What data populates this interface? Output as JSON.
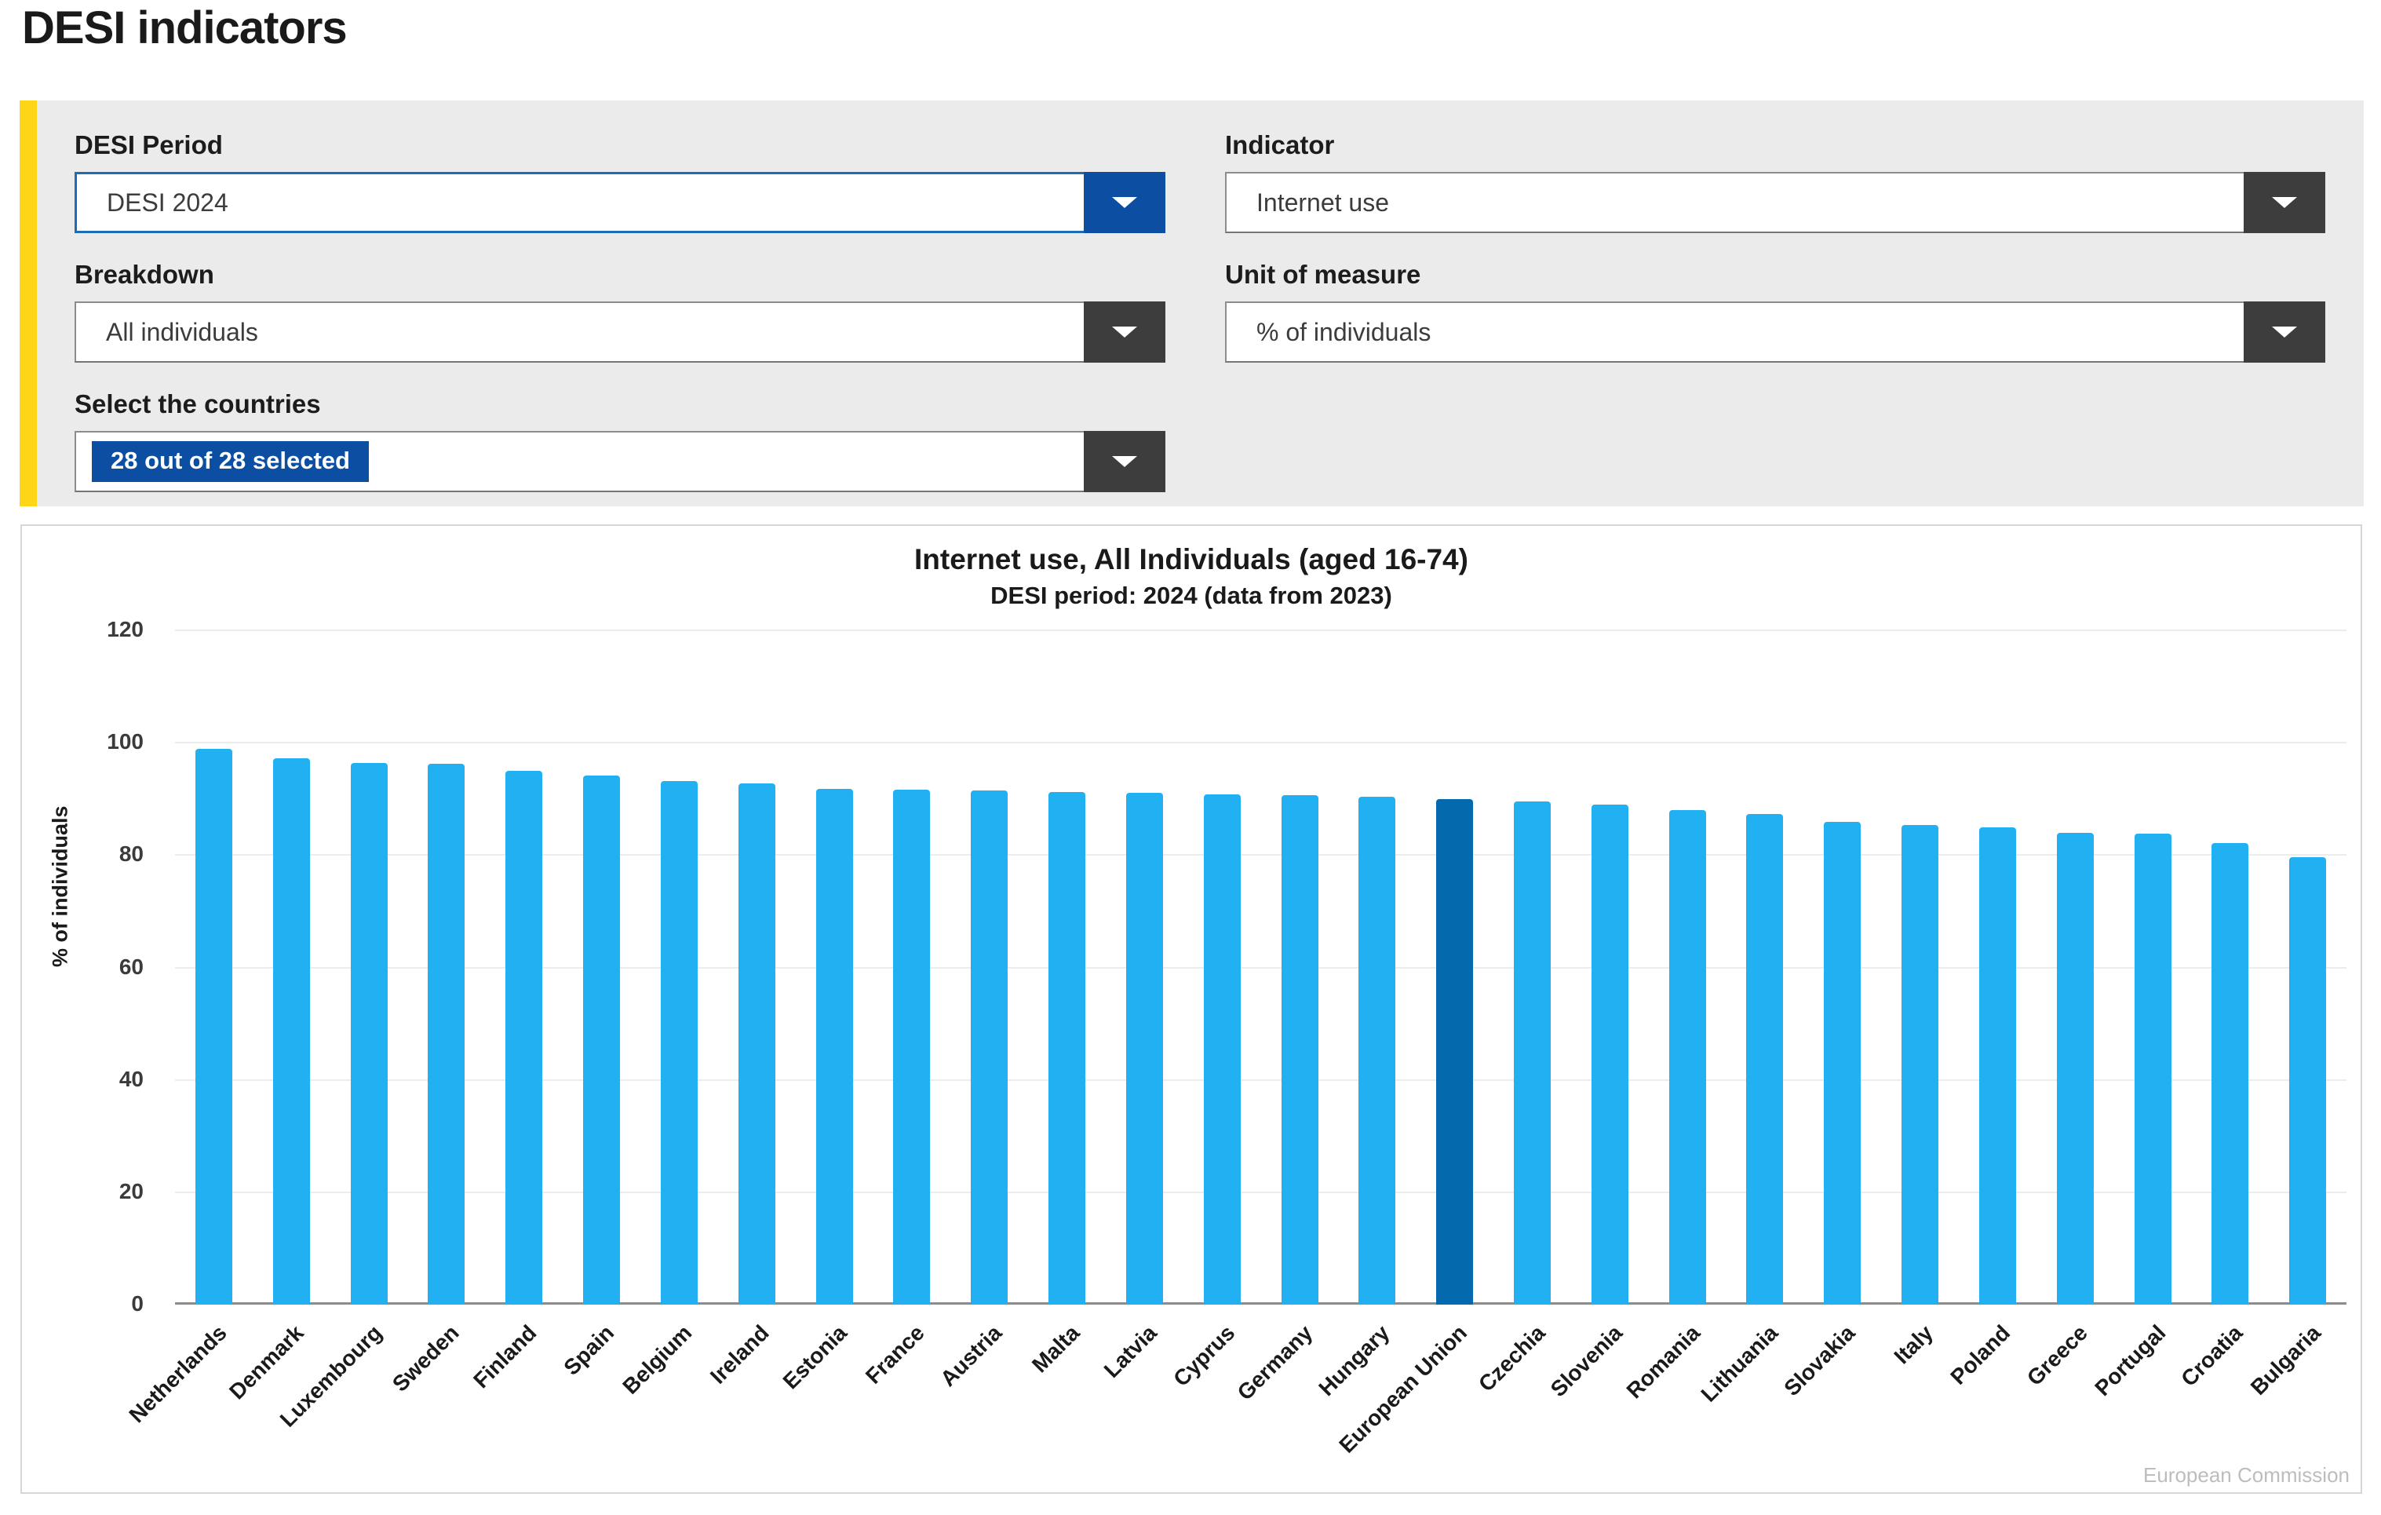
{
  "page": {
    "title": "DESI indicators"
  },
  "colors": {
    "accent_yellow": "#FFD617",
    "panel_bg": "#EBEBEB",
    "select_dark": "#3D3D3D",
    "blue": "#0B4EA2",
    "blue_border": "#1F6BB8"
  },
  "filters": {
    "desi_period": {
      "label": "DESI Period",
      "value": "DESI 2024"
    },
    "indicator": {
      "label": "Indicator",
      "value": "Internet use"
    },
    "breakdown": {
      "label": "Breakdown",
      "value": "All individuals"
    },
    "unit": {
      "label": "Unit of measure",
      "value": "% of individuals"
    },
    "countries": {
      "label": "Select the countries",
      "value": "28 out of 28 selected"
    }
  },
  "chart_data": {
    "type": "bar",
    "title": "Internet use, All Individuals (aged 16-74)",
    "subtitle": "DESI period: 2024 (data from 2023)",
    "ylabel": "% of individuals",
    "ylim": [
      0,
      120
    ],
    "ytick_step": 20,
    "grid": true,
    "legend_position": "none",
    "bar_color": "#21B1F2",
    "highlight_color": "#0569AD",
    "highlight_category": "European Union",
    "categories": [
      "Netherlands",
      "Denmark",
      "Luxembourg",
      "Sweden",
      "Finland",
      "Spain",
      "Belgium",
      "Ireland",
      "Estonia",
      "France",
      "Austria",
      "Malta",
      "Latvia",
      "Cyprus",
      "Germany",
      "Hungary",
      "European Union",
      "Czechia",
      "Slovenia",
      "Romania",
      "Lithuania",
      "Slovakia",
      "Italy",
      "Poland",
      "Greece",
      "Portugal",
      "Croatia",
      "Bulgaria"
    ],
    "values": [
      98.9,
      97.3,
      96.4,
      96.2,
      95.0,
      94.1,
      93.2,
      92.8,
      91.8,
      91.7,
      91.5,
      91.2,
      91.1,
      90.8,
      90.6,
      90.4,
      90.0,
      89.6,
      89.0,
      88.0,
      87.3,
      85.9,
      85.3,
      84.9,
      84.0,
      83.8,
      82.1,
      79.6
    ]
  },
  "footer": {
    "watermark": "European Commission"
  }
}
